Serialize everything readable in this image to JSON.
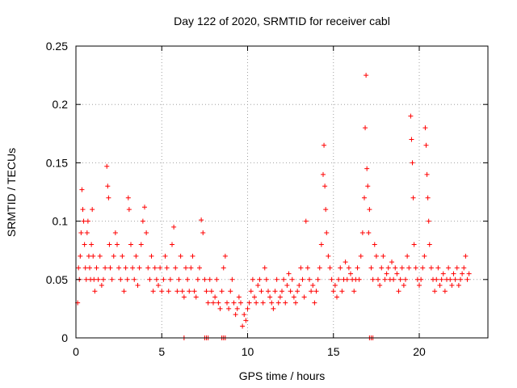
{
  "chart_data": {
    "type": "scatter",
    "title": "Day 122 of 2020, SRMTID for receiver cabl",
    "xlabel": "GPS time / hours",
    "ylabel": "SRMTID / TECUs",
    "xlim": [
      0,
      24
    ],
    "ylim": [
      0,
      0.25
    ],
    "xticks": [
      0,
      5,
      10,
      15,
      20
    ],
    "xtick_labels": [
      "0",
      "5",
      "10",
      "15",
      "20"
    ],
    "yticks": [
      0,
      0.05,
      0.1,
      0.15,
      0.2,
      0.25
    ],
    "ytick_labels": [
      "0",
      "0.05",
      "0.1",
      "0.15",
      "0.2",
      "0.25"
    ],
    "grid": true,
    "marker": "+",
    "marker_color": "#ff0000",
    "series": [
      {
        "name": "SRMTID",
        "x": [
          0.1,
          0.15,
          0.2,
          0.25,
          0.3,
          0.35,
          0.4,
          0.45,
          0.5,
          0.55,
          0.6,
          0.65,
          0.7,
          0.75,
          0.8,
          0.85,
          0.9,
          0.95,
          1.0,
          1.05,
          1.1,
          1.2,
          1.3,
          1.4,
          1.5,
          1.6,
          1.7,
          1.8,
          1.85,
          1.9,
          1.95,
          2.0,
          2.1,
          2.2,
          2.3,
          2.4,
          2.5,
          2.6,
          2.7,
          2.8,
          2.9,
          3.0,
          3.05,
          3.1,
          3.2,
          3.3,
          3.4,
          3.5,
          3.6,
          3.7,
          3.8,
          3.9,
          4.0,
          4.1,
          4.2,
          4.3,
          4.4,
          4.5,
          4.6,
          4.7,
          4.8,
          4.9,
          5.0,
          5.1,
          5.2,
          5.3,
          5.4,
          5.5,
          5.6,
          5.7,
          5.8,
          5.9,
          6.0,
          6.1,
          6.2,
          6.3,
          6.4,
          6.5,
          6.6,
          6.7,
          6.8,
          6.9,
          7.0,
          7.1,
          7.2,
          7.3,
          7.4,
          7.5,
          7.6,
          7.7,
          7.8,
          7.9,
          8.0,
          8.1,
          8.2,
          8.3,
          8.4,
          8.5,
          8.6,
          8.7,
          8.8,
          8.9,
          9.0,
          9.1,
          9.2,
          9.3,
          9.4,
          9.5,
          9.6,
          9.7,
          9.8,
          9.9,
          10.0,
          10.1,
          10.2,
          10.3,
          10.4,
          10.5,
          10.6,
          10.7,
          10.8,
          10.9,
          11.0,
          11.1,
          11.2,
          11.3,
          11.4,
          11.5,
          11.6,
          11.7,
          11.8,
          11.9,
          12.0,
          12.1,
          12.2,
          12.3,
          12.4,
          12.5,
          12.6,
          12.7,
          12.8,
          12.9,
          13.0,
          13.1,
          13.2,
          13.3,
          13.4,
          13.5,
          13.6,
          13.7,
          13.8,
          13.9,
          14.0,
          14.1,
          14.2,
          14.3,
          14.4,
          14.45,
          14.5,
          14.55,
          14.6,
          14.7,
          14.8,
          14.9,
          15.0,
          15.1,
          15.2,
          15.3,
          15.4,
          15.5,
          15.6,
          15.7,
          15.8,
          15.9,
          16.0,
          16.1,
          16.2,
          16.3,
          16.4,
          16.5,
          16.6,
          16.7,
          16.8,
          16.85,
          16.9,
          16.95,
          17.0,
          17.05,
          17.1,
          17.2,
          17.3,
          17.4,
          17.5,
          17.6,
          17.7,
          17.8,
          17.9,
          18.0,
          18.1,
          18.2,
          18.3,
          18.4,
          18.5,
          18.6,
          18.7,
          18.8,
          18.9,
          19.0,
          19.1,
          19.2,
          19.3,
          19.4,
          19.5,
          19.55,
          19.6,
          19.65,
          19.7,
          19.8,
          19.9,
          20.0,
          20.1,
          20.2,
          20.3,
          20.35,
          20.4,
          20.45,
          20.5,
          20.55,
          20.6,
          20.7,
          20.8,
          20.9,
          21.0,
          21.1,
          21.2,
          21.3,
          21.4,
          21.5,
          21.6,
          21.7,
          21.8,
          21.9,
          22.0,
          22.1,
          22.2,
          22.3,
          22.4,
          22.5,
          22.6,
          22.7,
          22.8,
          22.9,
          6.3,
          7.5,
          7.6,
          7.7,
          8.5,
          8.6,
          8.7,
          17.1,
          17.2,
          17.3
        ],
        "y": [
          0.03,
          0.06,
          0.05,
          0.07,
          0.09,
          0.127,
          0.11,
          0.1,
          0.08,
          0.06,
          0.05,
          0.09,
          0.1,
          0.07,
          0.06,
          0.05,
          0.08,
          0.11,
          0.07,
          0.05,
          0.04,
          0.06,
          0.05,
          0.07,
          0.045,
          0.05,
          0.06,
          0.147,
          0.13,
          0.12,
          0.08,
          0.06,
          0.05,
          0.07,
          0.09,
          0.08,
          0.06,
          0.05,
          0.07,
          0.04,
          0.06,
          0.05,
          0.12,
          0.11,
          0.08,
          0.06,
          0.05,
          0.07,
          0.045,
          0.06,
          0.08,
          0.1,
          0.112,
          0.09,
          0.06,
          0.05,
          0.07,
          0.04,
          0.06,
          0.05,
          0.045,
          0.06,
          0.04,
          0.05,
          0.07,
          0.06,
          0.04,
          0.05,
          0.08,
          0.095,
          0.06,
          0.04,
          0.05,
          0.07,
          0.04,
          0.035,
          0.06,
          0.05,
          0.04,
          0.06,
          0.07,
          0.04,
          0.035,
          0.05,
          0.06,
          0.101,
          0.09,
          0.05,
          0.04,
          0.03,
          0.05,
          0.04,
          0.03,
          0.035,
          0.05,
          0.03,
          0.025,
          0.04,
          0.06,
          0.07,
          0.03,
          0.025,
          0.04,
          0.05,
          0.03,
          0.02,
          0.025,
          0.035,
          0.03,
          0.01,
          0.02,
          0.015,
          0.025,
          0.03,
          0.04,
          0.05,
          0.035,
          0.03,
          0.045,
          0.05,
          0.04,
          0.03,
          0.06,
          0.05,
          0.04,
          0.035,
          0.03,
          0.025,
          0.04,
          0.05,
          0.03,
          0.035,
          0.04,
          0.05,
          0.03,
          0.045,
          0.055,
          0.04,
          0.05,
          0.035,
          0.03,
          0.04,
          0.045,
          0.06,
          0.05,
          0.035,
          0.1,
          0.06,
          0.05,
          0.04,
          0.045,
          0.03,
          0.04,
          0.05,
          0.06,
          0.08,
          0.14,
          0.165,
          0.13,
          0.11,
          0.09,
          0.07,
          0.06,
          0.05,
          0.04,
          0.045,
          0.035,
          0.05,
          0.06,
          0.04,
          0.05,
          0.065,
          0.05,
          0.06,
          0.055,
          0.05,
          0.04,
          0.05,
          0.06,
          0.05,
          0.07,
          0.09,
          0.12,
          0.18,
          0.225,
          0.145,
          0.13,
          0.09,
          0.11,
          0.06,
          0.05,
          0.08,
          0.07,
          0.05,
          0.045,
          0.06,
          0.07,
          0.05,
          0.055,
          0.06,
          0.05,
          0.065,
          0.05,
          0.06,
          0.055,
          0.04,
          0.05,
          0.06,
          0.045,
          0.05,
          0.07,
          0.06,
          0.19,
          0.17,
          0.15,
          0.12,
          0.08,
          0.06,
          0.05,
          0.045,
          0.05,
          0.06,
          0.07,
          0.18,
          0.165,
          0.14,
          0.12,
          0.1,
          0.08,
          0.06,
          0.05,
          0.04,
          0.05,
          0.06,
          0.045,
          0.05,
          0.055,
          0.04,
          0.05,
          0.06,
          0.05,
          0.045,
          0.055,
          0.05,
          0.06,
          0.045,
          0.05,
          0.055,
          0.06,
          0.07,
          0.05,
          0.055,
          0.0,
          0.0,
          0.0,
          0.0,
          0.0,
          0.0,
          0.0,
          0.0,
          0.0,
          0.0
        ]
      }
    ]
  }
}
